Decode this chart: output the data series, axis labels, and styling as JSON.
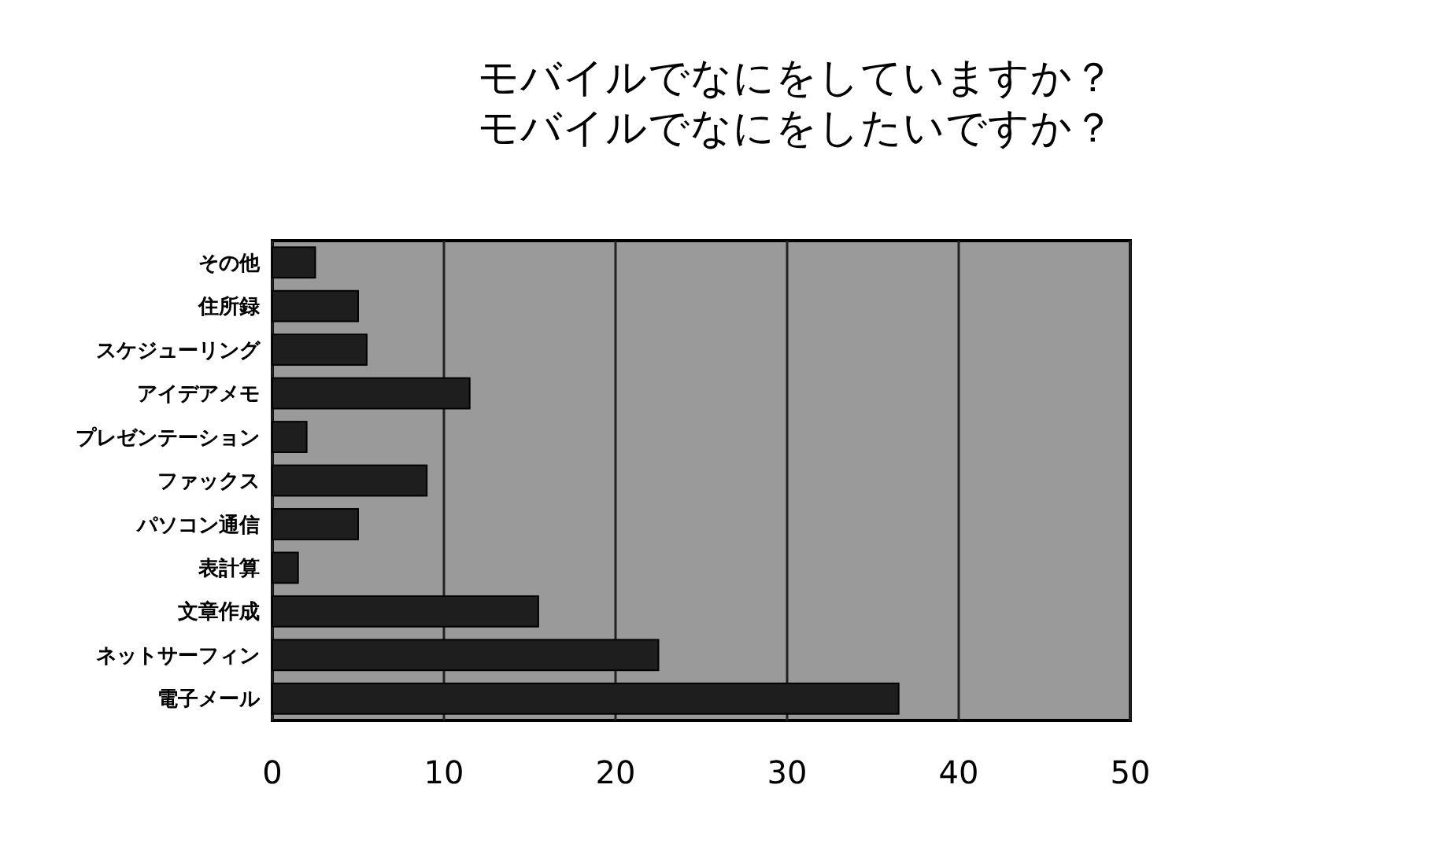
{
  "chart_data": {
    "type": "bar",
    "orientation": "horizontal",
    "title": "モバイルでなにをしていますか？",
    "subtitle": "モバイルでなにをしたいですか？",
    "categories": [
      "その他",
      "住所録",
      "スケジューリング",
      "アイデアメモ",
      "プレゼンテーション",
      "ファックス",
      "パソコン通信",
      "表計算",
      "文章作成",
      "ネットサーフィン",
      "電子メール"
    ],
    "values": [
      2.5,
      5,
      5.5,
      11.5,
      2,
      9,
      5,
      1.5,
      15.5,
      22.5,
      36.5
    ],
    "color": "#1e1e1e",
    "xlim": [
      0,
      50
    ],
    "xticks": [
      0,
      10,
      20,
      30,
      40,
      50
    ],
    "grid": "x"
  }
}
